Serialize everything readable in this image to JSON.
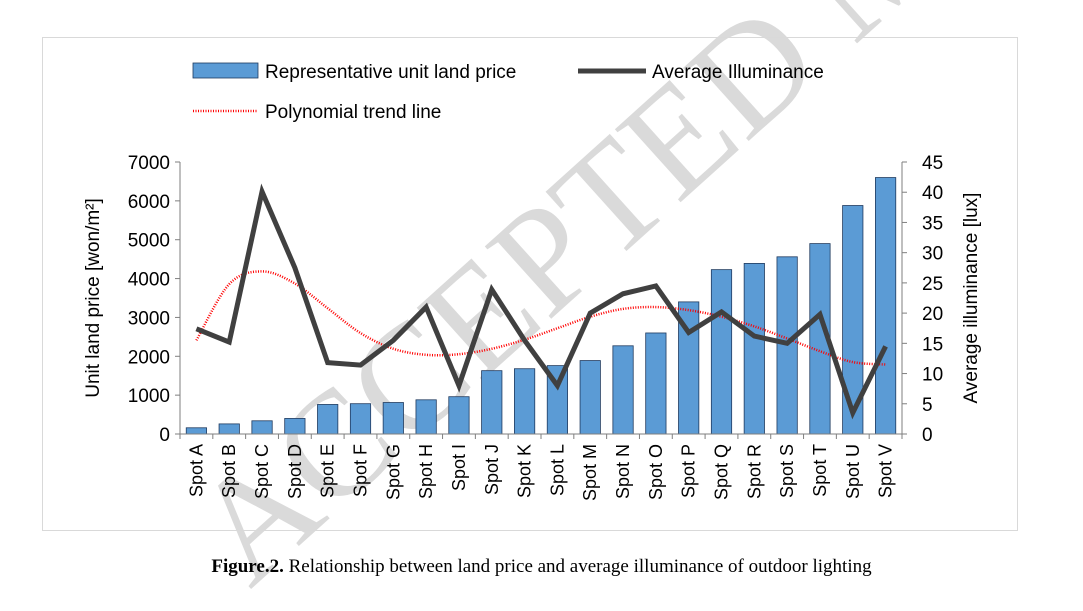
{
  "watermark": {
    "text": "ACCEPTED MANUSCRIPT",
    "color": "#dadada"
  },
  "caption": {
    "label": "Figure.2.",
    "text": " Relationship between land price and average illuminance of outdoor lighting"
  },
  "chart_data": {
    "type": "bar",
    "categories": [
      "Spot A",
      "Spot B",
      "Spot C",
      "Spot D",
      "Spot E",
      "Spot F",
      "Spot G",
      "Spot H",
      "Spot I",
      "Spot J",
      "Spot K",
      "Spot L",
      "Spot M",
      "Spot N",
      "Spot O",
      "Spot P",
      "Spot Q",
      "Spot R",
      "Spot S",
      "Spot T",
      "Spot U",
      "Spot V"
    ],
    "ylabel": "Unit land price [won/m²]",
    "y2label": "Average illuminance [lux]",
    "ylim": [
      0,
      7000
    ],
    "yticks": [
      0,
      1000,
      2000,
      3000,
      4000,
      5000,
      6000,
      7000
    ],
    "y2lim": [
      0,
      45
    ],
    "y2ticks": [
      0,
      5,
      10,
      15,
      20,
      25,
      30,
      35,
      40,
      45
    ],
    "grid": false,
    "legend_position": "top",
    "series": [
      {
        "name": "Representative unit land price",
        "kind": "bar",
        "axis": "left",
        "color": "#5b9bd5",
        "values": [
          160,
          260,
          340,
          400,
          760,
          780,
          810,
          880,
          960,
          1630,
          1680,
          1760,
          1890,
          2270,
          2600,
          3400,
          4230,
          4390,
          4560,
          4900,
          5880,
          6600
        ]
      },
      {
        "name": "Average  Illuminance",
        "kind": "line",
        "axis": "right",
        "color": "#404040",
        "values": [
          17.4,
          15.2,
          40.1,
          27.5,
          11.8,
          11.4,
          15.5,
          21.0,
          8.0,
          23.9,
          15.5,
          8.0,
          20.0,
          23.2,
          24.5,
          16.8,
          20.2,
          16.2,
          15.0,
          19.8,
          3.5,
          14.5
        ]
      },
      {
        "name": "Polynomial trend line",
        "kind": "trend",
        "axis": "right",
        "color": "#ff0000",
        "values": [
          15.5,
          24.8,
          26.9,
          24.9,
          20.8,
          16.7,
          14.1,
          13.1,
          13.2,
          14.1,
          15.6,
          17.5,
          19.4,
          20.7,
          21.0,
          20.5,
          19.4,
          17.8,
          15.8,
          13.7,
          11.9,
          11.5
        ]
      }
    ]
  }
}
